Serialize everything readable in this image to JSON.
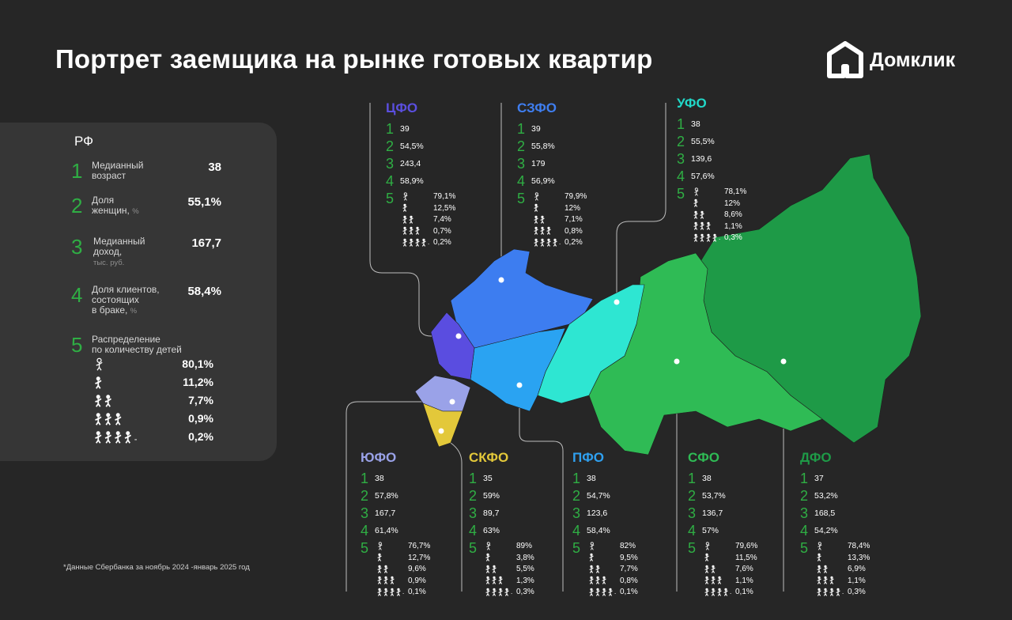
{
  "title": "Портрет заемщика на рынке готовых квартир",
  "logo": {
    "text": "Домклик",
    "icon": "domclick-house-icon"
  },
  "rf": {
    "name": "РФ",
    "metrics": [
      {
        "num": "1",
        "label": "Медианный\nвозраст",
        "unit": "",
        "value": "38"
      },
      {
        "num": "2",
        "label": "Доля\nженщин,",
        "unit": "%",
        "value": "55,1%"
      },
      {
        "num": "3",
        "label": "Медианный\nдоход,",
        "unit": "тыс. руб.",
        "value": "167,7"
      },
      {
        "num": "4",
        "label": "Доля клиентов,\nсостоящих\nв браке,",
        "unit": "%",
        "value": "58,4%"
      },
      {
        "num": "5",
        "label": "Распределение\nпо количеству детей",
        "unit": "",
        "value": ""
      }
    ],
    "kids": [
      "80,1%",
      "11,2%",
      "7,7%",
      "0,9%",
      "0,2%"
    ]
  },
  "districts": {
    "cfo": {
      "name": "ЦФО",
      "color": "#5b4fe0",
      "vals": [
        "39",
        "54,5%",
        "243,4",
        "58,9%"
      ],
      "kids": [
        "79,1%",
        "12,5%",
        "7,4%",
        "0,7%",
        "0,2%"
      ]
    },
    "szfo": {
      "name": "СЗФО",
      "color": "#3f7ef0",
      "vals": [
        "39",
        "55,8%",
        "179",
        "56,9%"
      ],
      "kids": [
        "79,9%",
        "12%",
        "7,1%",
        "0,8%",
        "0,2%"
      ]
    },
    "ufo": {
      "name": "УФО",
      "color": "#21d8c8",
      "vals": [
        "38",
        "55,5%",
        "139,6",
        "57,6%"
      ],
      "kids": [
        "78,1%",
        "12%",
        "8,6%",
        "1,1%",
        "0,3%"
      ]
    },
    "yufo": {
      "name": "ЮФО",
      "color": "#9aa2e8",
      "vals": [
        "38",
        "57,8%",
        "167,7",
        "61,4%"
      ],
      "kids": [
        "76,7%",
        "12,7%",
        "9,6%",
        "0,9%",
        "0,1%"
      ]
    },
    "skfo": {
      "name": "СКФО",
      "color": "#e3c83a",
      "vals": [
        "35",
        "59%",
        "89,7",
        "63%"
      ],
      "kids": [
        "89%",
        "3,8%",
        "5,5%",
        "1,3%",
        "0,3%"
      ]
    },
    "pfo": {
      "name": "ПФО",
      "color": "#2fa0f0",
      "vals": [
        "38",
        "54,7%",
        "123,6",
        "58,4%"
      ],
      "kids": [
        "82%",
        "9,5%",
        "7,7%",
        "0,8%",
        "0,1%"
      ]
    },
    "sfo": {
      "name": "СФО",
      "color": "#2fbb55",
      "vals": [
        "38",
        "53,7%",
        "136,7",
        "57%"
      ],
      "kids": [
        "79,6%",
        "11,5%",
        "7,6%",
        "1,1%",
        "0,1%"
      ]
    },
    "dfo": {
      "name": "ДФО",
      "color": "#1e9a47",
      "vals": [
        "37",
        "53,2%",
        "168,5",
        "54,2%"
      ],
      "kids": [
        "78,4%",
        "13,3%",
        "6,9%",
        "1,1%",
        "0,3%"
      ]
    }
  },
  "kid_icons": [
    "no-children-icon",
    "one-child-icon",
    "two-children-icon",
    "three-children-icon",
    "four-plus-children-icon"
  ],
  "footnote": "*Данные Сбербанка за ноябрь 2024 -январь 2025 год",
  "colors": {
    "background": "#262626",
    "panel": "#363636",
    "accent_green": "#2fae44"
  }
}
